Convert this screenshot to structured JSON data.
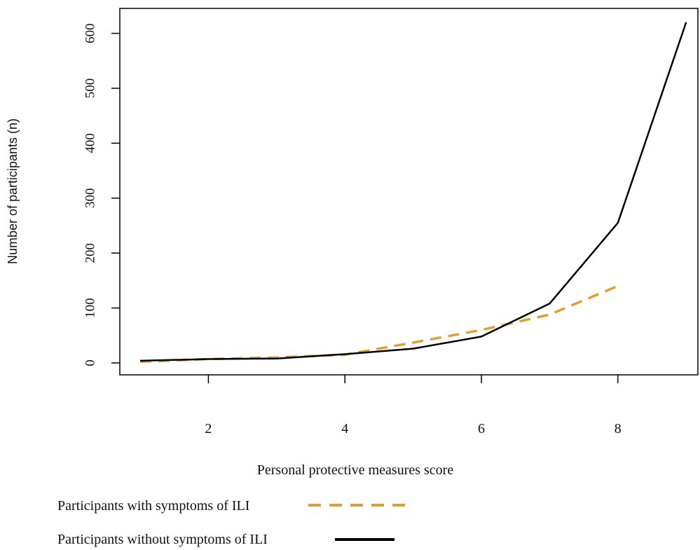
{
  "chart_data": {
    "type": "line",
    "title": "",
    "xlabel": "Personal protective measures score",
    "ylabel": "Number of participants (n)",
    "xlim": [
      1,
      9
    ],
    "ylim": [
      0,
      620
    ],
    "x_ticks": [
      2,
      4,
      6,
      8
    ],
    "y_ticks": [
      0,
      100,
      200,
      300,
      400,
      500,
      600
    ],
    "grid": false,
    "legend_position": "bottom-left",
    "series": [
      {
        "name": "Participants with symptoms of ILI",
        "style": "dashed",
        "color": "#E0A030",
        "x": [
          1,
          2,
          3,
          4,
          5,
          6,
          7,
          8
        ],
        "values": [
          2,
          7,
          10,
          15,
          37,
          60,
          88,
          140
        ]
      },
      {
        "name": "Participants without symptoms of ILI",
        "style": "solid",
        "color": "#000000",
        "x": [
          1,
          2,
          3,
          4,
          5,
          6,
          7,
          8,
          9
        ],
        "values": [
          4,
          7,
          8,
          16,
          26,
          48,
          108,
          255,
          620
        ]
      }
    ]
  }
}
